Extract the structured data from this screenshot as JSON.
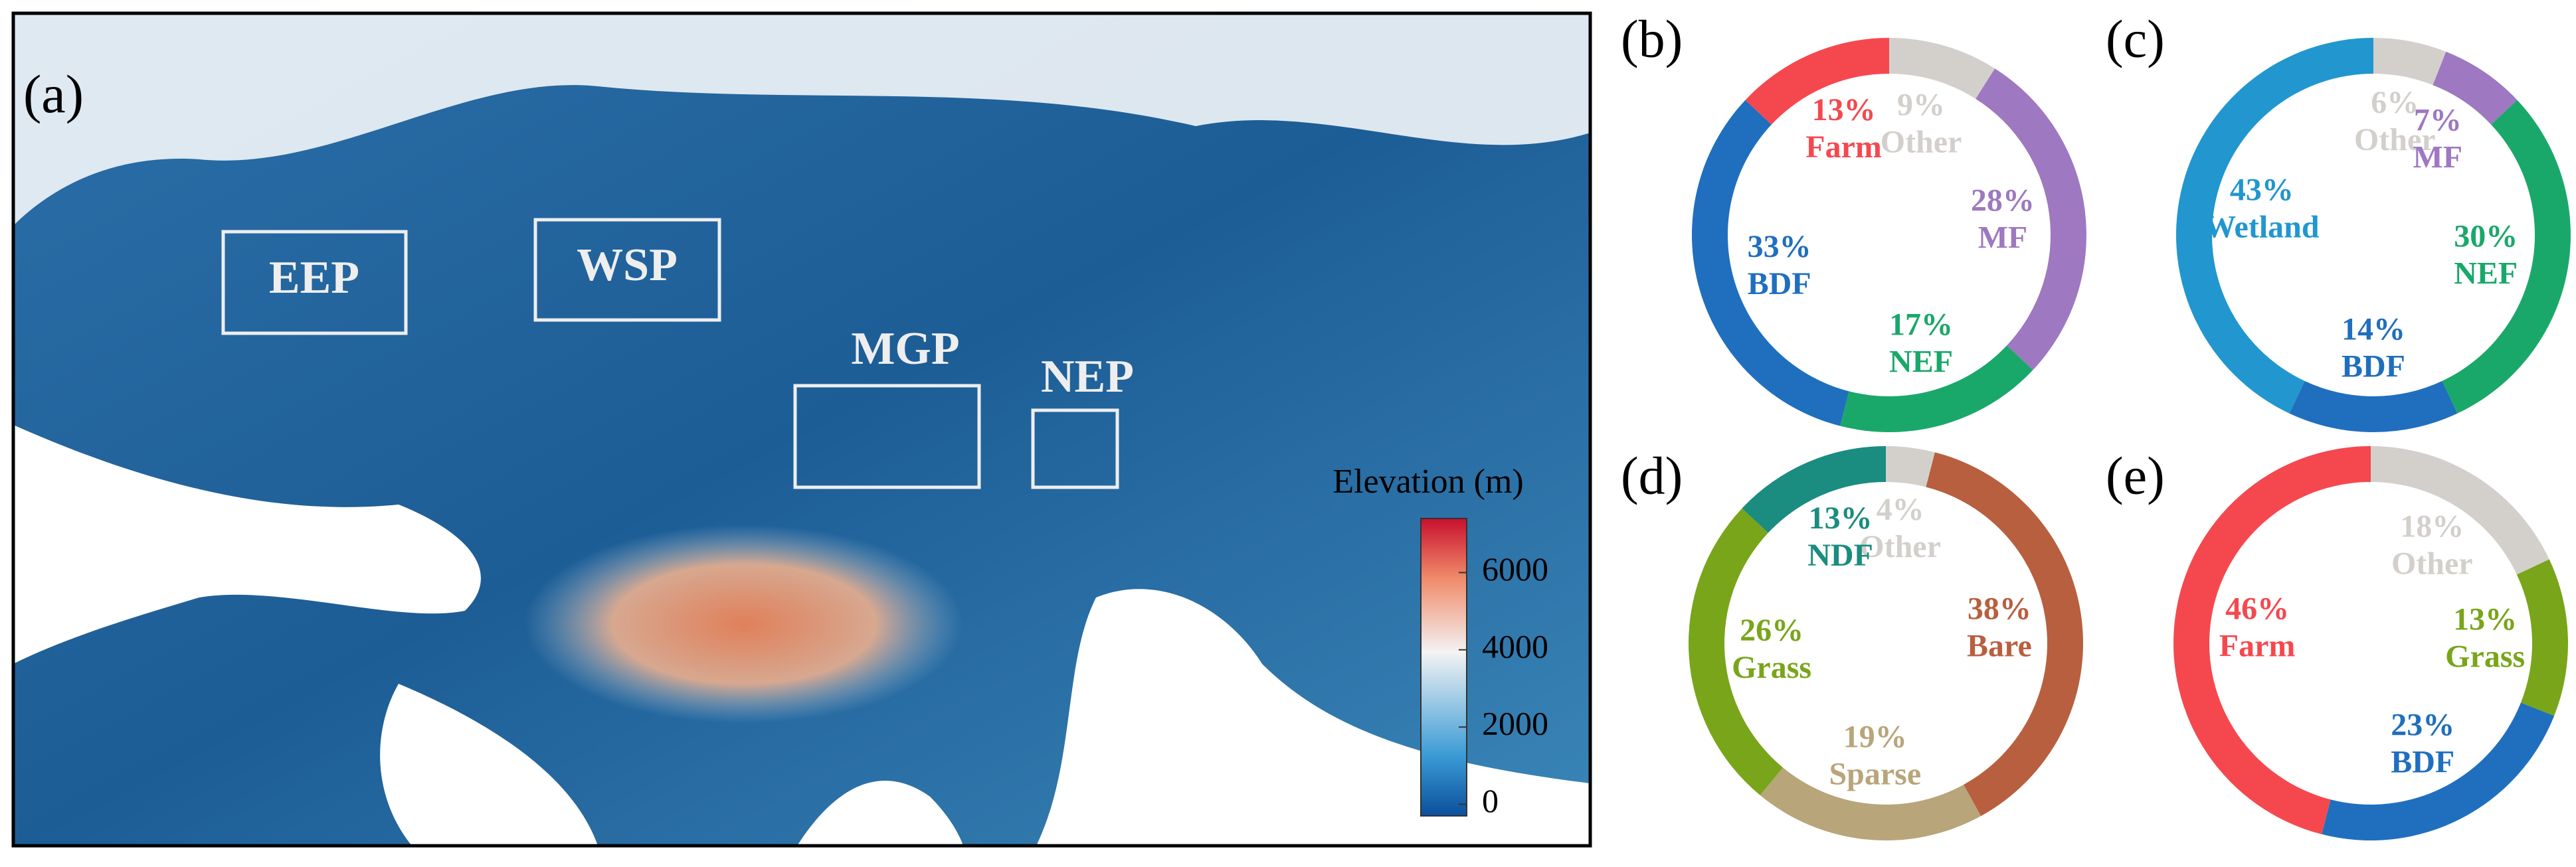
{
  "map": {
    "panel": "(a)",
    "regions": [
      {
        "name": "EEP"
      },
      {
        "name": "WSP"
      },
      {
        "name": "MGP"
      },
      {
        "name": "NEP"
      }
    ],
    "colorbar": {
      "title": "Elevation (m)",
      "lim": [
        -300,
        7400
      ],
      "ticks": [
        0,
        2000,
        4000,
        6000
      ]
    }
  },
  "chart_data": [
    {
      "type": "pie",
      "panel": "(b)",
      "categories": [
        "Other",
        "MF",
        "NEF",
        "BDF",
        "Farm"
      ],
      "values": [
        9,
        28,
        17,
        33,
        13
      ],
      "value_labels": [
        "9%",
        "28%",
        "17%",
        "33%",
        "13%"
      ],
      "colors": [
        "#d3d0cc",
        "#9e78c0",
        "#1aa86a",
        "#1f6fbe",
        "#f5484e"
      ]
    },
    {
      "type": "pie",
      "panel": "(c)",
      "categories": [
        "Other",
        "MF",
        "NEF",
        "BDF",
        "Wetland"
      ],
      "values": [
        6,
        7,
        30,
        14,
        43
      ],
      "value_labels": [
        "6%",
        "7%",
        "30%",
        "14%",
        "43%"
      ],
      "colors": [
        "#d3d0cc",
        "#9e78c0",
        "#1aa86a",
        "#1f6fbe",
        "#2196cf"
      ]
    },
    {
      "type": "pie",
      "panel": "(d)",
      "categories": [
        "Other",
        "Bare",
        "Sparse",
        "Grass",
        "NDF"
      ],
      "values": [
        4,
        38,
        19,
        26,
        13
      ],
      "value_labels": [
        "4%",
        "38%",
        "19%",
        "26%",
        "13%"
      ],
      "colors": [
        "#d3d0cc",
        "#b85f3f",
        "#b8a57a",
        "#79a51a",
        "#1a8c80"
      ]
    },
    {
      "type": "pie",
      "panel": "(e)",
      "categories": [
        "Other",
        "Grass",
        "BDF",
        "Farm"
      ],
      "values": [
        18,
        13,
        23,
        46
      ],
      "value_labels": [
        "18%",
        "13%",
        "23%",
        "46%"
      ],
      "colors": [
        "#d3d0cc",
        "#79a51a",
        "#1f6fbe",
        "#f5484e"
      ]
    }
  ]
}
